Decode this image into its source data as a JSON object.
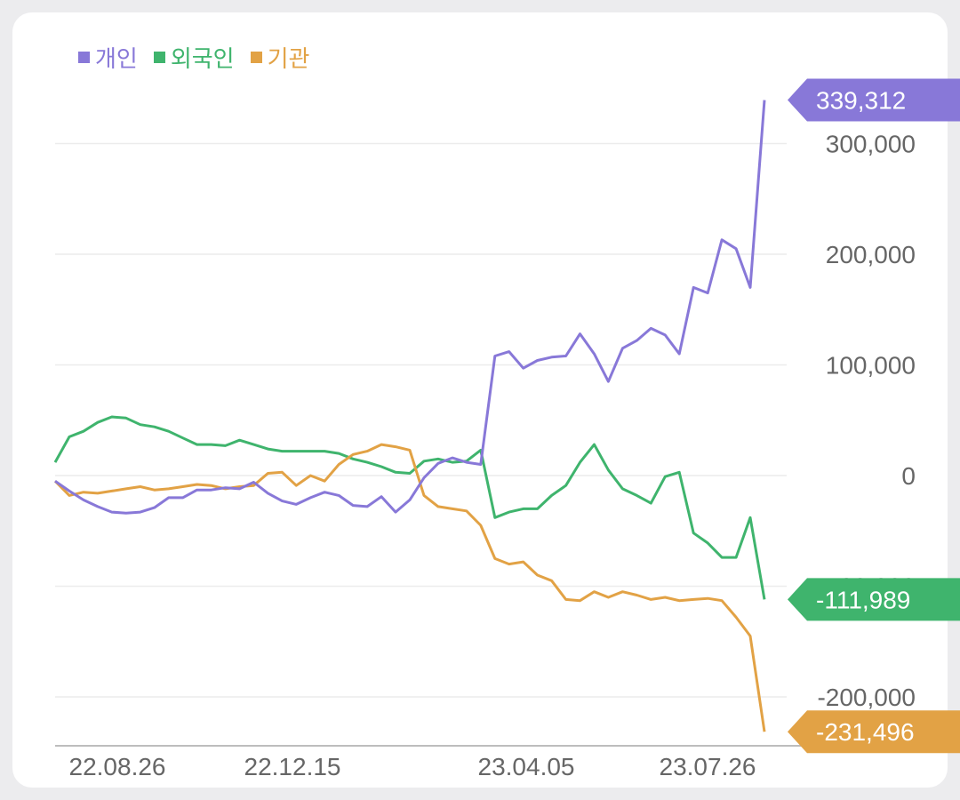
{
  "chart_data": {
    "type": "line",
    "legend_position": "top-left",
    "grid": true,
    "x_ticks": [
      "22.08.26",
      "22.12.15",
      "23.04.05",
      "23.07.26"
    ],
    "y_ticks": [
      {
        "value": 300000,
        "label": "300,000"
      },
      {
        "value": 200000,
        "label": "200,000"
      },
      {
        "value": 100000,
        "label": "100,000"
      },
      {
        "value": 0,
        "label": "0"
      },
      {
        "value": -100000,
        "label": "-100,000"
      },
      {
        "value": -200000,
        "label": "-200,000"
      }
    ],
    "ylim": [
      -232000,
      340000
    ],
    "series": [
      {
        "name": "개인",
        "color": "#8878d8",
        "last_label": "339,312",
        "values": [
          -5000,
          -14000,
          -22000,
          -28000,
          -33000,
          -34000,
          -33000,
          -29000,
          -20000,
          -20000,
          -13000,
          -13000,
          -11000,
          -12000,
          -6000,
          -16000,
          -23000,
          -26000,
          -20000,
          -15000,
          -18000,
          -27000,
          -28000,
          -19000,
          -33000,
          -22000,
          -2000,
          11000,
          16000,
          12000,
          10000,
          108000,
          112000,
          97000,
          104000,
          107000,
          108000,
          128000,
          110000,
          85000,
          115000,
          122000,
          133000,
          127000,
          110000,
          170000,
          165000,
          213000,
          205000,
          170000,
          339312
        ]
      },
      {
        "name": "외국인",
        "color": "#3fb46d",
        "last_label": "-111,989",
        "values": [
          12000,
          35000,
          40000,
          48000,
          53000,
          52000,
          46000,
          44000,
          40000,
          34000,
          28000,
          28000,
          27000,
          32000,
          28000,
          24000,
          22000,
          22000,
          22000,
          22000,
          20000,
          15000,
          12000,
          8000,
          3000,
          2000,
          13000,
          15000,
          12000,
          13000,
          23000,
          -38000,
          -33000,
          -30000,
          -30000,
          -18000,
          -9000,
          12000,
          28000,
          5000,
          -12000,
          -18000,
          -25000,
          -1000,
          3000,
          -52000,
          -61000,
          -74000,
          -74000,
          -38000,
          -111989
        ]
      },
      {
        "name": "기관",
        "color": "#e2a245",
        "last_label": "-231,496",
        "values": [
          -5000,
          -18000,
          -15000,
          -16000,
          -14000,
          -12000,
          -10000,
          -13000,
          -12000,
          -10000,
          -8000,
          -9000,
          -12000,
          -10000,
          -9000,
          2000,
          3000,
          -9000,
          0,
          -5000,
          10000,
          19000,
          22000,
          28000,
          26000,
          23000,
          -18000,
          -28000,
          -30000,
          -32000,
          -45000,
          -75000,
          -80000,
          -78000,
          -90000,
          -95000,
          -112000,
          -113000,
          -105000,
          -110000,
          -105000,
          -108000,
          -112000,
          -110000,
          -113000,
          -112000,
          -111000,
          -113000,
          -128000,
          -145000,
          -231496
        ]
      }
    ]
  }
}
